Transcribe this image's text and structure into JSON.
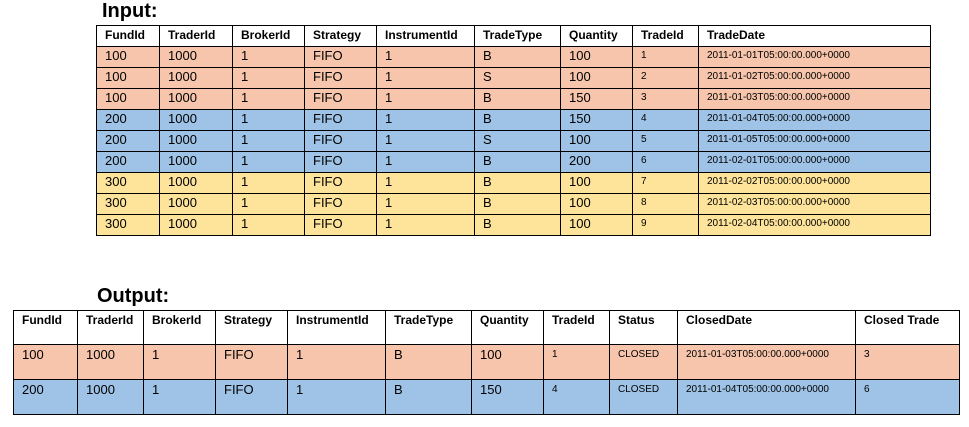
{
  "input": {
    "title": "Input:",
    "columns": [
      "FundId",
      "TraderId",
      "BrokerId",
      "Strategy",
      "InstrumentId",
      "TradeType",
      "Quantity",
      "TradeId",
      "TradeDate"
    ],
    "rows": [
      {
        "color": "orange",
        "cells": [
          "100",
          "1000",
          "1",
          "FIFO",
          "1",
          "B",
          "100",
          "1",
          "2011-01-01T05:00:00.000+0000"
        ]
      },
      {
        "color": "orange",
        "cells": [
          "100",
          "1000",
          "1",
          "FIFO",
          "1",
          "S",
          "100",
          "2",
          "2011-01-02T05:00:00.000+0000"
        ]
      },
      {
        "color": "orange",
        "cells": [
          "100",
          "1000",
          "1",
          "FIFO",
          "1",
          "B",
          "150",
          "3",
          "2011-01-03T05:00:00.000+0000"
        ]
      },
      {
        "color": "blue",
        "cells": [
          "200",
          "1000",
          "1",
          "FIFO",
          "1",
          "B",
          "150",
          "4",
          "2011-01-04T05:00:00.000+0000"
        ]
      },
      {
        "color": "blue",
        "cells": [
          "200",
          "1000",
          "1",
          "FIFO",
          "1",
          "S",
          "100",
          "5",
          "2011-01-05T05:00:00.000+0000"
        ]
      },
      {
        "color": "blue",
        "cells": [
          "200",
          "1000",
          "1",
          "FIFO",
          "1",
          "B",
          "200",
          "6",
          "2011-02-01T05:00:00.000+0000"
        ]
      },
      {
        "color": "yellow",
        "cells": [
          "300",
          "1000",
          "1",
          "FIFO",
          "1",
          "B",
          "100",
          "7",
          "2011-02-02T05:00:00.000+0000"
        ]
      },
      {
        "color": "yellow",
        "cells": [
          "300",
          "1000",
          "1",
          "FIFO",
          "1",
          "B",
          "100",
          "8",
          "2011-02-03T05:00:00.000+0000"
        ]
      },
      {
        "color": "yellow",
        "cells": [
          "300",
          "1000",
          "1",
          "FIFO",
          "1",
          "B",
          "100",
          "9",
          "2011-02-04T05:00:00.000+0000"
        ]
      }
    ]
  },
  "output": {
    "title": "Output:",
    "columns": [
      "FundId",
      "TraderId",
      "BrokerId",
      "Strategy",
      "InstrumentId",
      "TradeType",
      "Quantity",
      "TradeId",
      "Status",
      "ClosedDate",
      "Closed Trade"
    ],
    "rows": [
      {
        "color": "orange",
        "cells": [
          "100",
          "1000",
          "1",
          "FIFO",
          "1",
          "B",
          "100",
          "1",
          "CLOSED",
          "2011-01-03T05:00:00.000+0000",
          "3"
        ]
      },
      {
        "color": "blue",
        "cells": [
          "200",
          "1000",
          "1",
          "FIFO",
          "1",
          "B",
          "150",
          "4",
          "CLOSED",
          "2011-01-04T05:00:00.000+0000",
          "6"
        ]
      }
    ]
  },
  "colors": {
    "orange": "#f6c5ac",
    "blue": "#9fc3e6",
    "yellow": "#fde49a"
  }
}
